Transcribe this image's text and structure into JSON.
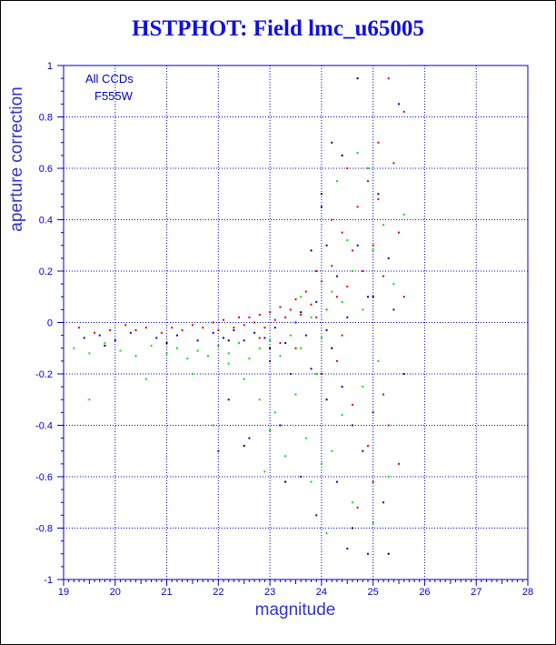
{
  "chart_data": {
    "type": "scatter",
    "title": "HSTPHOT: Field lmc_u65005",
    "xlabel": "magnitude",
    "ylabel": "aperture correction",
    "xlim": [
      19,
      28
    ],
    "ylim": [
      -1,
      1
    ],
    "x_ticks": [
      "19",
      "20",
      "21",
      "22",
      "23",
      "24",
      "25",
      "26",
      "27",
      "28"
    ],
    "y_ticks": [
      "-1",
      "-0.8",
      "-0.6",
      "-0.4",
      "-0.2",
      "0",
      "0.2",
      "0.4",
      "0.6",
      "0.8",
      "1"
    ],
    "grid": true,
    "annotations": [
      "All CCDs",
      "F555W"
    ],
    "colors": {
      "axes": "#0000c8",
      "title": "#1010e0",
      "grid": "#0000c8",
      "series_red": "#e00000",
      "series_green": "#00e000",
      "series_blue": "#0000c0",
      "series_black": "#000000"
    },
    "series": [
      {
        "color": "red",
        "points": [
          [
            19.3,
            -0.02
          ],
          [
            19.6,
            -0.04
          ],
          [
            19.9,
            -0.03
          ],
          [
            20.2,
            -0.01
          ],
          [
            20.4,
            -0.03
          ],
          [
            20.6,
            -0.02
          ],
          [
            20.9,
            -0.04
          ],
          [
            21.1,
            -0.02
          ],
          [
            21.3,
            -0.03
          ],
          [
            21.5,
            -0.01
          ],
          [
            21.7,
            -0.02
          ],
          [
            21.9,
            0.0
          ],
          [
            22.0,
            -0.03
          ],
          [
            22.1,
            0.01
          ],
          [
            22.3,
            -0.02
          ],
          [
            22.4,
            0.02
          ],
          [
            22.5,
            -0.01
          ],
          [
            22.6,
            0.02
          ],
          [
            22.7,
            0.0
          ],
          [
            22.8,
            0.03
          ],
          [
            22.9,
            -0.02
          ],
          [
            23.0,
            0.04
          ],
          [
            23.1,
            0.01
          ],
          [
            23.2,
            0.06
          ],
          [
            23.3,
            0.02
          ],
          [
            23.4,
            0.05
          ],
          [
            23.5,
            0.09
          ],
          [
            23.6,
            0.03
          ],
          [
            23.7,
            0.12
          ],
          [
            23.8,
            0.07
          ],
          [
            23.9,
            0.02
          ],
          [
            24.0,
            0.16
          ],
          [
            24.1,
            0.05
          ],
          [
            24.2,
            0.22
          ],
          [
            24.3,
            0.1
          ],
          [
            24.4,
            0.35
          ],
          [
            24.5,
            0.14
          ],
          [
            24.6,
            0.28
          ],
          [
            24.7,
            0.45
          ],
          [
            24.8,
            0.2
          ],
          [
            24.9,
            0.55
          ],
          [
            25.0,
            0.3
          ],
          [
            25.1,
            0.7
          ],
          [
            25.2,
            0.18
          ],
          [
            25.3,
            0.95
          ],
          [
            25.4,
            0.62
          ],
          [
            25.5,
            0.35
          ],
          [
            25.6,
            0.82
          ],
          [
            24.3,
            -0.15
          ],
          [
            24.6,
            -0.32
          ],
          [
            24.9,
            -0.48
          ],
          [
            25.2,
            -0.28
          ],
          [
            25.5,
            -0.55
          ],
          [
            23.5,
            -0.1
          ],
          [
            24.0,
            -0.2
          ],
          [
            24.5,
            0.6
          ],
          [
            24.2,
            0.4
          ],
          [
            25.0,
            -0.62
          ],
          [
            23.2,
            -0.08
          ],
          [
            22.8,
            -0.06
          ],
          [
            24.7,
            -0.72
          ],
          [
            25.3,
            -0.4
          ],
          [
            23.9,
            0.2
          ],
          [
            24.4,
            -0.05
          ],
          [
            25.1,
            0.48
          ],
          [
            25.6,
            0.1
          ]
        ]
      },
      {
        "color": "green",
        "points": [
          [
            19.2,
            -0.1
          ],
          [
            19.5,
            -0.12
          ],
          [
            19.8,
            -0.08
          ],
          [
            20.1,
            -0.11
          ],
          [
            20.4,
            -0.13
          ],
          [
            20.7,
            -0.09
          ],
          [
            21.0,
            -0.12
          ],
          [
            21.2,
            -0.1
          ],
          [
            21.4,
            -0.14
          ],
          [
            21.6,
            -0.11
          ],
          [
            21.8,
            -0.13
          ],
          [
            22.0,
            -0.09
          ],
          [
            22.2,
            -0.12
          ],
          [
            22.4,
            -0.08
          ],
          [
            22.6,
            -0.14
          ],
          [
            22.8,
            -0.1
          ],
          [
            23.0,
            -0.07
          ],
          [
            23.2,
            -0.13
          ],
          [
            23.4,
            -0.05
          ],
          [
            23.6,
            -0.1
          ],
          [
            23.8,
            0.02
          ],
          [
            24.0,
            -0.06
          ],
          [
            24.2,
            0.12
          ],
          [
            24.4,
            0.08
          ],
          [
            24.6,
            0.2
          ],
          [
            24.8,
            0.05
          ],
          [
            25.0,
            0.28
          ],
          [
            25.2,
            0.38
          ],
          [
            25.4,
            0.15
          ],
          [
            25.6,
            0.42
          ],
          [
            24.3,
            0.55
          ],
          [
            24.5,
            0.32
          ],
          [
            24.7,
            0.66
          ],
          [
            24.1,
            0.05
          ],
          [
            23.9,
            -0.2
          ],
          [
            23.5,
            -0.28
          ],
          [
            23.1,
            -0.35
          ],
          [
            22.8,
            -0.3
          ],
          [
            22.5,
            -0.22
          ],
          [
            21.9,
            -0.4
          ],
          [
            23.7,
            -0.45
          ],
          [
            24.0,
            -0.55
          ],
          [
            23.8,
            -0.62
          ],
          [
            24.2,
            -0.5
          ],
          [
            24.6,
            -0.7
          ],
          [
            25.0,
            -0.78
          ],
          [
            24.4,
            -0.36
          ],
          [
            24.8,
            -0.25
          ],
          [
            23.3,
            -0.52
          ],
          [
            22.9,
            -0.58
          ],
          [
            24.1,
            -0.82
          ],
          [
            25.3,
            -0.6
          ],
          [
            19.5,
            -0.3
          ],
          [
            20.6,
            -0.22
          ],
          [
            21.5,
            -0.2
          ],
          [
            23.0,
            -0.42
          ],
          [
            24.9,
            0.6
          ],
          [
            25.1,
            -0.15
          ],
          [
            23.6,
            0.1
          ],
          [
            22.2,
            -0.16
          ]
        ]
      },
      {
        "color": "blue",
        "points": [
          [
            19.4,
            -0.06
          ],
          [
            19.7,
            -0.05
          ],
          [
            20.0,
            -0.07
          ],
          [
            20.3,
            -0.04
          ],
          [
            20.8,
            -0.06
          ],
          [
            21.2,
            -0.05
          ],
          [
            21.6,
            -0.07
          ],
          [
            21.9,
            -0.04
          ],
          [
            22.1,
            -0.06
          ],
          [
            22.3,
            -0.03
          ],
          [
            22.5,
            -0.07
          ],
          [
            22.7,
            -0.04
          ],
          [
            22.9,
            -0.06
          ],
          [
            23.1,
            -0.02
          ],
          [
            23.3,
            -0.08
          ],
          [
            23.5,
            0.0
          ],
          [
            23.7,
            -0.05
          ],
          [
            23.9,
            0.08
          ],
          [
            24.1,
            -0.03
          ],
          [
            24.3,
            0.18
          ],
          [
            24.5,
            0.02
          ],
          [
            24.7,
            0.3
          ],
          [
            24.9,
            0.1
          ],
          [
            25.1,
            0.5
          ],
          [
            25.3,
            0.25
          ],
          [
            25.5,
            0.85
          ],
          [
            24.2,
            0.7
          ],
          [
            24.0,
            0.45
          ],
          [
            23.8,
            -0.18
          ],
          [
            24.4,
            -0.25
          ],
          [
            24.6,
            -0.4
          ],
          [
            24.8,
            -0.5
          ],
          [
            25.0,
            -0.35
          ],
          [
            23.4,
            -0.2
          ],
          [
            23.0,
            -0.15
          ],
          [
            22.2,
            -0.3
          ],
          [
            24.5,
            -0.88
          ],
          [
            24.9,
            -0.9
          ],
          [
            25.2,
            -0.7
          ],
          [
            23.6,
            -0.6
          ],
          [
            23.2,
            -0.4
          ],
          [
            24.3,
            -0.62
          ],
          [
            25.4,
            0.05
          ],
          [
            25.6,
            -0.2
          ],
          [
            24.1,
            0.3
          ],
          [
            22.0,
            -0.5
          ],
          [
            22.6,
            -0.45
          ],
          [
            23.9,
            -0.75
          ]
        ]
      },
      {
        "color": "black",
        "points": [
          [
            19.8,
            -0.09
          ],
          [
            21.0,
            -0.08
          ],
          [
            22.2,
            -0.07
          ],
          [
            23.0,
            -0.1
          ],
          [
            23.6,
            0.04
          ],
          [
            24.0,
            0.5
          ],
          [
            24.2,
            -0.1
          ],
          [
            24.4,
            0.65
          ],
          [
            24.7,
            0.95
          ],
          [
            25.0,
            0.1
          ],
          [
            24.1,
            -0.3
          ],
          [
            23.3,
            -0.62
          ],
          [
            22.5,
            -0.48
          ],
          [
            24.6,
            -0.8
          ],
          [
            25.3,
            -0.9
          ],
          [
            23.8,
            0.28
          ]
        ]
      }
    ]
  }
}
